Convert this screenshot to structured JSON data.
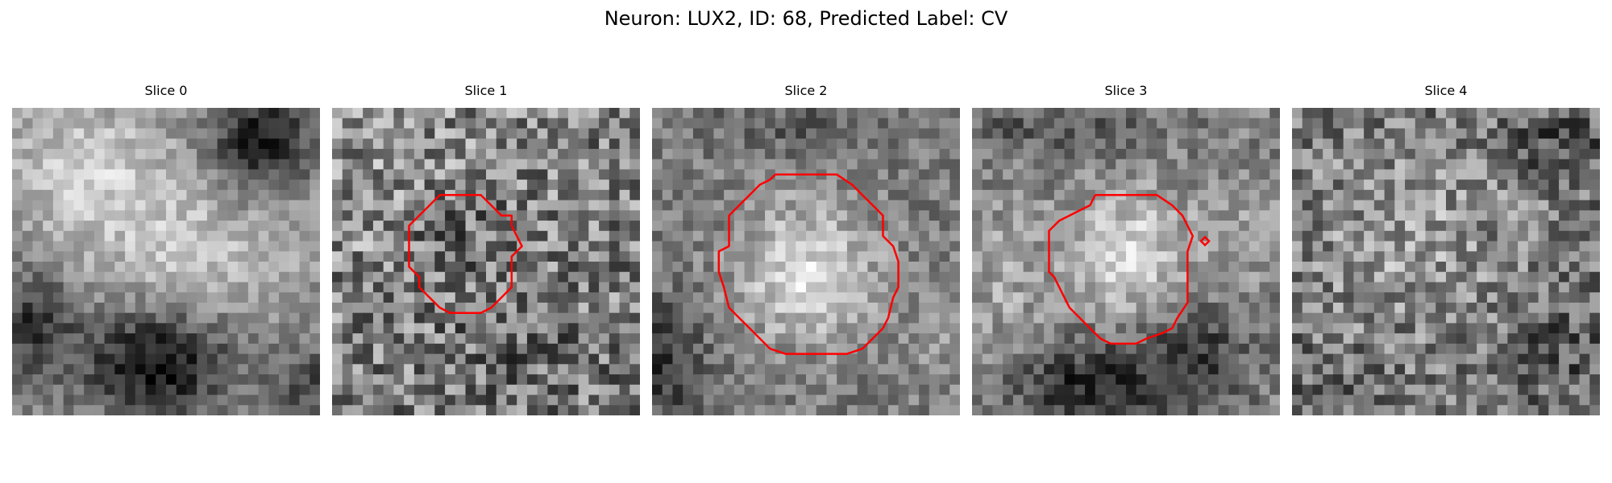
{
  "figure": {
    "title": "Neuron: LUX2, ID: 68, Predicted Label: CV"
  },
  "contour_color": "#ff0000",
  "colormap": "gray",
  "slices": [
    {
      "title": "Slice 0",
      "has_contour": false
    },
    {
      "title": "Slice 1",
      "has_contour": true
    },
    {
      "title": "Slice 2",
      "has_contour": true
    },
    {
      "title": "Slice 3",
      "has_contour": true
    },
    {
      "title": "Slice 4",
      "has_contour": false
    }
  ]
}
